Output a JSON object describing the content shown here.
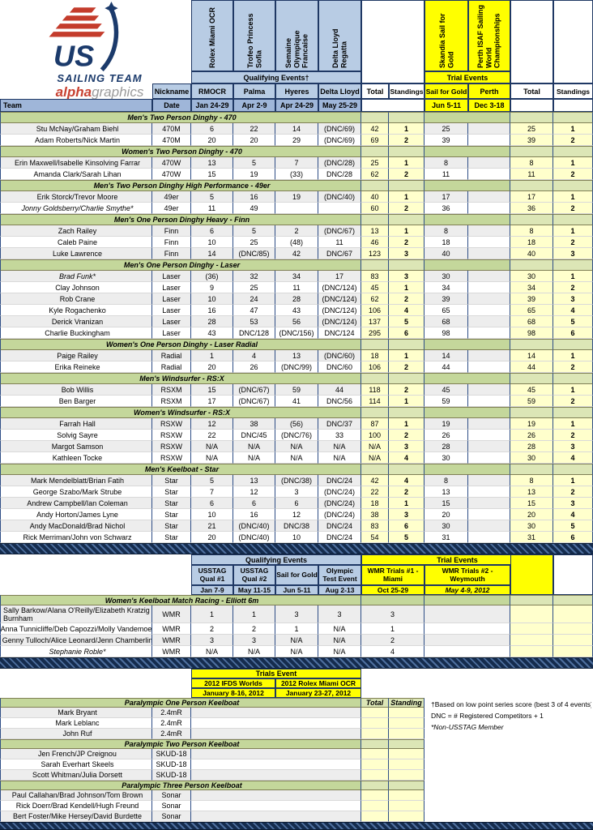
{
  "logo": {
    "team": "SAILING TEAM",
    "brand_red": "alpha",
    "brand_gray": "graphics",
    "us": "US"
  },
  "colors": {
    "accent_blue": "#B8CCE4",
    "accent_blue_dark": "#9FB6D9",
    "accent_yellow": "#FFFF00",
    "pale_yellow": "#FFFFCC",
    "section_green": "#C4D79B",
    "section_green_pale": "#DCE6B6",
    "divider_navy": "#17375D",
    "band_gray": "#EDEDED"
  },
  "table1": {
    "rotated_qualifying": [
      "Rolex Miami OCR",
      "Trofeo Princess Sofia",
      "Semaine Olympique Francaise",
      "Delta Lloyd Regatta"
    ],
    "rotated_trials": [
      "Skandia Sail for Gold",
      "Perth ISAF Sailing World Championships"
    ],
    "qualifying_band": "Qualifying Events†",
    "trials_band": "Trial Events",
    "columns": [
      "Nickname",
      "RMOCR",
      "Palma",
      "Hyeres",
      "Delta Lloyd",
      "Total",
      "Standings",
      "Sail for Gold",
      "Perth",
      "Total",
      "Standings"
    ],
    "team_label": "Team",
    "date_label": "Date",
    "dates": [
      "Jan 24-29",
      "Apr 2-9",
      "Apr 24-29",
      "May 25-29",
      "Jun 5-11",
      "Dec 3-18"
    ],
    "sections": [
      {
        "title": "Men's Two Person Dinghy - 470",
        "rows": [
          {
            "name": "Stu McNay/Graham Biehl",
            "class": "470M",
            "v": [
              "6",
              "22",
              "14",
              "(DNC/69)",
              "42",
              "1",
              "25",
              "",
              "25",
              "1"
            ]
          },
          {
            "name": "Adam Roberts/Nick Martin",
            "class": "470M",
            "v": [
              "20",
              "20",
              "29",
              "(DNC/69)",
              "69",
              "2",
              "39",
              "",
              "39",
              "2"
            ]
          }
        ]
      },
      {
        "title": "Women's Two Person Dinghy - 470",
        "rows": [
          {
            "name": "Erin Maxwell/Isabelle Kinsolving Farrar",
            "class": "470W",
            "v": [
              "13",
              "5",
              "7",
              "(DNC/28)",
              "25",
              "1",
              "8",
              "",
              "8",
              "1"
            ]
          },
          {
            "name": "Amanda Clark/Sarah Lihan",
            "class": "470W",
            "v": [
              "15",
              "19",
              "(33)",
              "DNC/28",
              "62",
              "2",
              "11",
              "",
              "11",
              "2"
            ]
          }
        ]
      },
      {
        "title": "Men's Two Person Dinghy High Performance - 49er",
        "rows": [
          {
            "name": "Erik Storck/Trevor Moore",
            "class": "49er",
            "v": [
              "5",
              "16",
              "19",
              "(DNC/40)",
              "40",
              "1",
              "17",
              "",
              "17",
              "1"
            ]
          },
          {
            "name": "Jonny Goldsberry/Charlie Smythe*",
            "class": "49er",
            "italic": true,
            "v": [
              "11",
              "49",
              "",
              "",
              "60",
              "2",
              "36",
              "",
              "36",
              "2"
            ]
          }
        ]
      },
      {
        "title": "Men's One Person Dinghy Heavy - Finn",
        "rows": [
          {
            "name": "Zach Railey",
            "class": "Finn",
            "v": [
              "6",
              "5",
              "2",
              "(DNC/67)",
              "13",
              "1",
              "8",
              "",
              "8",
              "1"
            ]
          },
          {
            "name": "Caleb Paine",
            "class": "Finn",
            "v": [
              "10",
              "25",
              "(48)",
              "11",
              "46",
              "2",
              "18",
              "",
              "18",
              "2"
            ]
          },
          {
            "name": "Luke Lawrence",
            "class": "Finn",
            "v": [
              "14",
              "(DNC/85)",
              "42",
              "DNC/67",
              "123",
              "3",
              "40",
              "",
              "40",
              "3"
            ]
          }
        ]
      },
      {
        "title": "Men's One Person Dinghy - Laser",
        "rows": [
          {
            "name": "Brad Funk*",
            "class": "Laser",
            "italic": true,
            "v": [
              "(36)",
              "32",
              "34",
              "17",
              "83",
              "3",
              "30",
              "",
              "30",
              "1"
            ]
          },
          {
            "name": "Clay Johnson",
            "class": "Laser",
            "v": [
              "9",
              "25",
              "11",
              "(DNC/124)",
              "45",
              "1",
              "34",
              "",
              "34",
              "2"
            ]
          },
          {
            "name": "Rob Crane",
            "class": "Laser",
            "v": [
              "10",
              "24",
              "28",
              "(DNC/124)",
              "62",
              "2",
              "39",
              "",
              "39",
              "3"
            ]
          },
          {
            "name": "Kyle Rogachenko",
            "class": "Laser",
            "v": [
              "16",
              "47",
              "43",
              "(DNC/124)",
              "106",
              "4",
              "65",
              "",
              "65",
              "4"
            ]
          },
          {
            "name": "Derick Vranizan",
            "class": "Laser",
            "v": [
              "28",
              "53",
              "56",
              "(DNC/124)",
              "137",
              "5",
              "68",
              "",
              "68",
              "5"
            ]
          },
          {
            "name": "Charlie Buckingham",
            "class": "Laser",
            "v": [
              "43",
              "DNC/128",
              "(DNC/156)",
              "DNC/124",
              "295",
              "6",
              "98",
              "",
              "98",
              "6"
            ]
          }
        ]
      },
      {
        "title": "Women's One Person Dinghy - Laser Radial",
        "rows": [
          {
            "name": "Paige Railey",
            "class": "Radial",
            "v": [
              "1",
              "4",
              "13",
              "(DNC/60)",
              "18",
              "1",
              "14",
              "",
              "14",
              "1"
            ]
          },
          {
            "name": "Erika Reineke",
            "class": "Radial",
            "v": [
              "20",
              "26",
              "(DNC/99)",
              "DNC/60",
              "106",
              "2",
              "44",
              "",
              "44",
              "2"
            ]
          }
        ]
      },
      {
        "title": "Men's Windsurfer - RS:X",
        "rows": [
          {
            "name": "Bob Willis",
            "class": "RSXM",
            "v": [
              "15",
              "(DNC/67)",
              "59",
              "44",
              "118",
              "2",
              "45",
              "",
              "45",
              "1"
            ]
          },
          {
            "name": "Ben Barger",
            "class": "RSXM",
            "v": [
              "17",
              "(DNC/67)",
              "41",
              "DNC/56",
              "114",
              "1",
              "59",
              "",
              "59",
              "2"
            ]
          }
        ]
      },
      {
        "title": "Women's Windsurfer - RS:X",
        "rows": [
          {
            "name": "Farrah Hall",
            "class": "RSXW",
            "v": [
              "12",
              "38",
              "(56)",
              "DNC/37",
              "87",
              "1",
              "19",
              "",
              "19",
              "1"
            ]
          },
          {
            "name": "Solvig Sayre",
            "class": "RSXW",
            "v": [
              "22",
              "DNC/45",
              "(DNC/76)",
              "33",
              "100",
              "2",
              "26",
              "",
              "26",
              "2"
            ]
          },
          {
            "name": "Margot Samson",
            "class": "RSXW",
            "v": [
              "N/A",
              "N/A",
              "N/A",
              "N/A",
              "N/A",
              "3",
              "28",
              "",
              "28",
              "3"
            ]
          },
          {
            "name": "Kathleen Tocke",
            "class": "RSXW",
            "v": [
              "N/A",
              "N/A",
              "N/A",
              "N/A",
              "N/A",
              "4",
              "30",
              "",
              "30",
              "4"
            ]
          }
        ]
      },
      {
        "title": "Men's Keelboat - Star",
        "rows": [
          {
            "name": "Mark Mendelblatt/Brian Fatih",
            "class": "Star",
            "v": [
              "5",
              "13",
              "(DNC/38)",
              "DNC/24",
              "42",
              "4",
              "8",
              "",
              "8",
              "1"
            ]
          },
          {
            "name": "George Szabo/Mark Strube",
            "class": "Star",
            "v": [
              "7",
              "12",
              "3",
              "(DNC/24)",
              "22",
              "2",
              "13",
              "",
              "13",
              "2"
            ]
          },
          {
            "name": "Andrew Campbell/Ian Coleman",
            "class": "Star",
            "v": [
              "6",
              "6",
              "6",
              "(DNC/24)",
              "18",
              "1",
              "15",
              "",
              "15",
              "3"
            ]
          },
          {
            "name": "Andy Horton/James Lyne",
            "class": "Star",
            "v": [
              "10",
              "16",
              "12",
              "(DNC/24)",
              "38",
              "3",
              "20",
              "",
              "20",
              "4"
            ]
          },
          {
            "name": "Andy MacDonald/Brad Nichol",
            "class": "Star",
            "v": [
              "21",
              "(DNC/40)",
              "DNC/38",
              "DNC/24",
              "83",
              "6",
              "30",
              "",
              "30",
              "5"
            ]
          },
          {
            "name": "Rick Merriman/John von Schwarz",
            "class": "Star",
            "v": [
              "20",
              "(DNC/40)",
              "10",
              "DNC/24",
              "54",
              "5",
              "31",
              "",
              "31",
              "6"
            ]
          }
        ]
      }
    ]
  },
  "table2": {
    "qualifying_band": "Qualifying Events",
    "trials_band": "Trial Events",
    "columns": [
      "USSTAG Qual #1",
      "USSTAG Qual #2",
      "Sail for Gold",
      "Olympic Test Event",
      "WMR Trials #1 - Miami",
      "WMR Trials #2 - Weymouth"
    ],
    "dates": [
      "Jan 7-9",
      "May 11-15",
      "Jun 5-11",
      "Aug 2-13",
      "Oct 25-29",
      "May 4-9, 2012"
    ],
    "section": "Women's Keelboat Match Racing - Elliott 6m",
    "rows": [
      {
        "name": "Sally Barkow/Alana O'Reilly/Elizabeth Kratzig Burnham",
        "class": "WMR",
        "v": [
          "1",
          "1",
          "3",
          "3",
          "3",
          ""
        ]
      },
      {
        "name": "Anna Tunnicliffe/Deb Capozzi/Molly Vandemoer",
        "class": "WMR",
        "v": [
          "2",
          "2",
          "1",
          "N/A",
          "1",
          ""
        ]
      },
      {
        "name": "Genny Tulloch/Alice Leonard/Jenn Chamberlin",
        "class": "WMR",
        "v": [
          "3",
          "3",
          "N/A",
          "N/A",
          "2",
          ""
        ]
      },
      {
        "name": "Stephanie Roble*",
        "class": "WMR",
        "italic": true,
        "v": [
          "N/A",
          "N/A",
          "N/A",
          "N/A",
          "4",
          ""
        ]
      }
    ]
  },
  "table3": {
    "trials_band": "Trials Event",
    "events": [
      "2012 IFDS Worlds",
      "2012 Rolex Miami OCR"
    ],
    "dates": [
      "January 8-16, 2012",
      "January 23-27, 2012"
    ],
    "total_label": "Total",
    "standing_label": "Standing",
    "sections": [
      {
        "title": "Paralympic One Person Keelboat",
        "rows": [
          {
            "name": "Mark Bryant",
            "class": "2.4mR"
          },
          {
            "name": "Mark Leblanc",
            "class": "2.4mR"
          },
          {
            "name": "John Ruf",
            "class": "2.4mR"
          }
        ]
      },
      {
        "title": "Paralympic Two Person Keelboat",
        "rows": [
          {
            "name": "Jen French/JP Creignou",
            "class": "SKUD-18"
          },
          {
            "name": "Sarah Everhart Skeels",
            "class": "SKUD-18"
          },
          {
            "name": "Scott Whitman/Julia Dorsett",
            "class": "SKUD-18"
          }
        ]
      },
      {
        "title": "Paralympic Three Person Keelboat",
        "rows": [
          {
            "name": "Paul Callahan/Brad Johnson/Tom Brown",
            "class": "Sonar"
          },
          {
            "name": "Rick Doerr/Brad Kendell/Hugh Freund",
            "class": "Sonar"
          },
          {
            "name": "Bert Foster/Mike Hersey/David Burdette",
            "class": "Sonar"
          }
        ]
      }
    ],
    "notes": [
      "†Based on low point series score (best 3 of 4 events)",
      "DNC = # Registered Competitors + 1",
      "*Non-USSTAG Member"
    ]
  }
}
